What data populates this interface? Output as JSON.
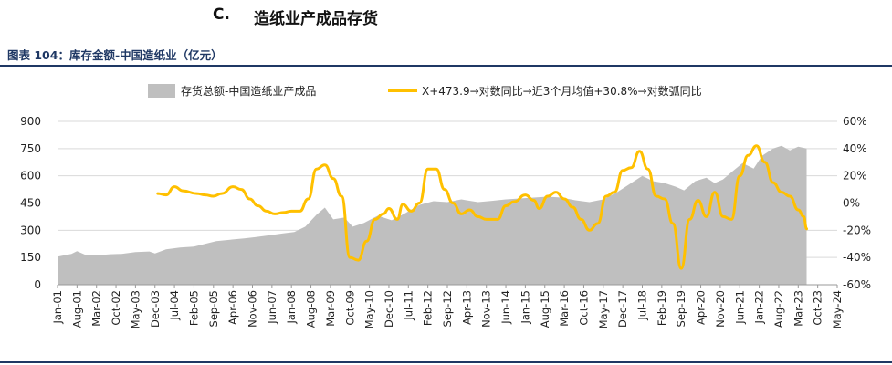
{
  "header": {
    "section_letter": "C.",
    "section_title": "造纸业产成品存货",
    "figure_title": "图表 104：库存金额-中国造纸业（亿元）"
  },
  "chart_data": {
    "type": "area+line",
    "legend": [
      {
        "name": "存货总额-中国造纸业产成品",
        "style": "area",
        "color": "#bfbfbf"
      },
      {
        "name": "X+473.9→对数同比→近3个月均值+30.8%→对数弧同比",
        "style": "line",
        "color": "#ffc000"
      }
    ],
    "legend_position": "top",
    "y_left": {
      "min": 0,
      "max": 900,
      "ticks": [
        "0",
        "150",
        "300",
        "450",
        "600",
        "750",
        "900"
      ]
    },
    "y_right": {
      "min": -60,
      "max": 60,
      "ticks": [
        "-60%",
        "-40%",
        "-20%",
        "0%",
        "20%",
        "40%",
        "60%"
      ]
    },
    "x_ticks": [
      "Jan-01",
      "Aug-01",
      "Mar-02",
      "Oct-02",
      "May-03",
      "Dec-03",
      "Jul-04",
      "Feb-05",
      "Sep-05",
      "Apr-06",
      "Nov-06",
      "Jun-07",
      "Jan-08",
      "Aug-08",
      "Mar-09",
      "Oct-09",
      "May-10",
      "Dec-10",
      "Jul-11",
      "Feb-12",
      "Sep-12",
      "Apr-13",
      "Nov-13",
      "Jun-14",
      "Jan-15",
      "Aug-15",
      "Mar-16",
      "Oct-16",
      "May-17",
      "Dec-17",
      "Jul-18",
      "Feb-19",
      "Sep-19",
      "Apr-20",
      "Nov-20",
      "Jun-21",
      "Jan-22",
      "Aug-22",
      "Mar-23",
      "Oct-23",
      "May-24"
    ],
    "x_range": [
      "2001-01",
      "2024-05"
    ],
    "area_series": {
      "name": "存货总额-中国造纸业产成品",
      "points": [
        [
          "2001-01",
          155
        ],
        [
          "2001-06",
          170
        ],
        [
          "2001-08",
          185
        ],
        [
          "2001-11",
          165
        ],
        [
          "2002-03",
          162
        ],
        [
          "2002-08",
          168
        ],
        [
          "2002-12",
          170
        ],
        [
          "2003-05",
          180
        ],
        [
          "2003-10",
          183
        ],
        [
          "2003-12",
          172
        ],
        [
          "2004-04",
          195
        ],
        [
          "2004-09",
          205
        ],
        [
          "2005-02",
          210
        ],
        [
          "2005-06",
          225
        ],
        [
          "2005-10",
          240
        ],
        [
          "2006-03",
          248
        ],
        [
          "2006-08",
          255
        ],
        [
          "2006-12",
          262
        ],
        [
          "2007-05",
          272
        ],
        [
          "2007-10",
          283
        ],
        [
          "2008-02",
          290
        ],
        [
          "2008-06",
          320
        ],
        [
          "2008-10",
          385
        ],
        [
          "2009-01",
          425
        ],
        [
          "2009-04",
          360
        ],
        [
          "2009-08",
          370
        ],
        [
          "2009-11",
          320
        ],
        [
          "2010-03",
          340
        ],
        [
          "2010-08",
          380
        ],
        [
          "2011-01",
          355
        ],
        [
          "2011-06",
          395
        ],
        [
          "2011-11",
          440
        ],
        [
          "2012-04",
          460
        ],
        [
          "2012-09",
          455
        ],
        [
          "2013-02",
          470
        ],
        [
          "2013-08",
          455
        ],
        [
          "2014-01",
          462
        ],
        [
          "2014-06",
          470
        ],
        [
          "2014-11",
          475
        ],
        [
          "2015-04",
          480
        ],
        [
          "2015-09",
          485
        ],
        [
          "2016-02",
          480
        ],
        [
          "2016-07",
          465
        ],
        [
          "2016-12",
          455
        ],
        [
          "2017-05",
          470
        ],
        [
          "2017-10",
          510
        ],
        [
          "2018-03",
          560
        ],
        [
          "2018-07",
          600
        ],
        [
          "2018-11",
          570
        ],
        [
          "2019-03",
          560
        ],
        [
          "2019-07",
          540
        ],
        [
          "2019-10",
          520
        ],
        [
          "2020-02",
          570
        ],
        [
          "2020-06",
          590
        ],
        [
          "2020-09",
          560
        ],
        [
          "2020-12",
          580
        ],
        [
          "2021-03",
          620
        ],
        [
          "2021-07",
          670
        ],
        [
          "2021-11",
          640
        ],
        [
          "2022-02",
          710
        ],
        [
          "2022-06",
          750
        ],
        [
          "2022-09",
          765
        ],
        [
          "2022-12",
          740
        ],
        [
          "2023-03",
          760
        ],
        [
          "2023-06",
          750
        ]
      ]
    },
    "line_series": {
      "name": "X+473.9→对数同比→近3个月均值+30.8%→对数弧同比",
      "points": [
        [
          "2004-01",
          7
        ],
        [
          "2004-04",
          6
        ],
        [
          "2004-07",
          12
        ],
        [
          "2004-10",
          9
        ],
        [
          "2005-03",
          7
        ],
        [
          "2005-06",
          6
        ],
        [
          "2005-09",
          5
        ],
        [
          "2005-12",
          7
        ],
        [
          "2006-04",
          12
        ],
        [
          "2006-07",
          10
        ],
        [
          "2006-10",
          3
        ],
        [
          "2007-01",
          -2
        ],
        [
          "2007-04",
          -6
        ],
        [
          "2007-07",
          -8
        ],
        [
          "2007-10",
          -7
        ],
        [
          "2008-01",
          -6
        ],
        [
          "2008-04",
          -6
        ],
        [
          "2008-07",
          3
        ],
        [
          "2008-10",
          25
        ],
        [
          "2009-01",
          28
        ],
        [
          "2009-04",
          18
        ],
        [
          "2009-07",
          5
        ],
        [
          "2009-10",
          -40
        ],
        [
          "2010-01",
          -42
        ],
        [
          "2010-04",
          -28
        ],
        [
          "2010-07",
          -12
        ],
        [
          "2010-10",
          -8
        ],
        [
          "2010-12",
          -4
        ],
        [
          "2011-03",
          -12
        ],
        [
          "2011-05",
          -1
        ],
        [
          "2011-08",
          -6
        ],
        [
          "2011-11",
          0
        ],
        [
          "2012-02",
          25
        ],
        [
          "2012-05",
          25
        ],
        [
          "2012-08",
          10
        ],
        [
          "2012-11",
          0
        ],
        [
          "2013-02",
          -8
        ],
        [
          "2013-05",
          -5
        ],
        [
          "2013-08",
          -10
        ],
        [
          "2013-11",
          -12
        ],
        [
          "2014-03",
          -12
        ],
        [
          "2014-06",
          -2
        ],
        [
          "2014-09",
          1
        ],
        [
          "2015-01",
          6
        ],
        [
          "2015-04",
          2
        ],
        [
          "2015-06",
          -4
        ],
        [
          "2015-09",
          5
        ],
        [
          "2015-12",
          8
        ],
        [
          "2016-03",
          3
        ],
        [
          "2016-06",
          -3
        ],
        [
          "2016-09",
          -12
        ],
        [
          "2016-12",
          -20
        ],
        [
          "2017-03",
          -15
        ],
        [
          "2017-06",
          5
        ],
        [
          "2017-09",
          8
        ],
        [
          "2017-12",
          24
        ],
        [
          "2018-03",
          26
        ],
        [
          "2018-06",
          38
        ],
        [
          "2018-09",
          25
        ],
        [
          "2018-12",
          5
        ],
        [
          "2019-03",
          3
        ],
        [
          "2019-06",
          -15
        ],
        [
          "2019-09",
          -48
        ],
        [
          "2019-12",
          -12
        ],
        [
          "2020-03",
          2
        ],
        [
          "2020-06",
          -10
        ],
        [
          "2020-09",
          8
        ],
        [
          "2020-12",
          -10
        ],
        [
          "2021-03",
          -12
        ],
        [
          "2021-06",
          20
        ],
        [
          "2021-09",
          35
        ],
        [
          "2021-12",
          42
        ],
        [
          "2022-03",
          30
        ],
        [
          "2022-06",
          15
        ],
        [
          "2022-09",
          8
        ],
        [
          "2022-12",
          5
        ],
        [
          "2023-03",
          -5
        ],
        [
          "2023-05",
          -10
        ],
        [
          "2023-06",
          -19
        ]
      ]
    }
  }
}
